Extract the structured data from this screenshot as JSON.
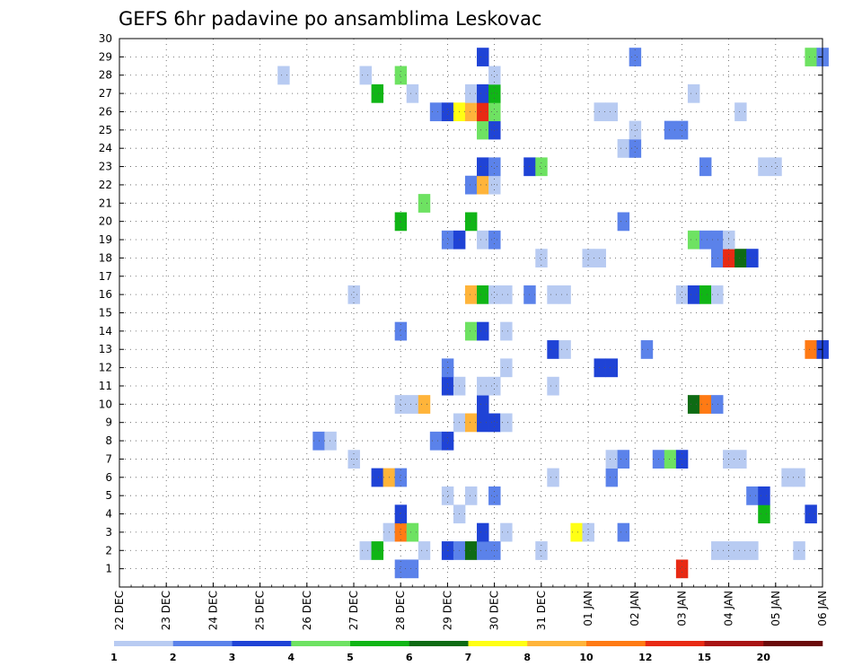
{
  "chart_data": {
    "type": "heatmap",
    "title": "GEFS 6hr padavine po ansamblima Leskovac",
    "xlabel": "",
    "ylabel": "",
    "x_tick_labels": [
      "22 DEC",
      "23 DEC",
      "24 DEC",
      "25 DEC",
      "26 DEC",
      "27 DEC",
      "28 DEC",
      "29 DEC",
      "30 DEC",
      "31 DEC",
      "01 JAN",
      "02 JAN",
      "03 JAN",
      "04 JAN",
      "05 JAN",
      "06 JAN"
    ],
    "y_tick_labels": [
      "1",
      "2",
      "3",
      "4",
      "5",
      "6",
      "7",
      "8",
      "9",
      "10",
      "11",
      "12",
      "13",
      "14",
      "15",
      "16",
      "17",
      "18",
      "19",
      "20",
      "21",
      "22",
      "23",
      "24",
      "25",
      "26",
      "27",
      "28",
      "29",
      "30"
    ],
    "x_range_days": [
      0,
      15
    ],
    "y_range_members": [
      0,
      30
    ],
    "time_step_days": 0.25,
    "grid": true,
    "legend_placement": "bottom",
    "legend_thresholds": [
      "1",
      "2",
      "3",
      "4",
      "5",
      "6",
      "7",
      "8",
      "10",
      "12",
      "15",
      "20"
    ],
    "legend_colors": [
      "#b8cbf2",
      "#5b82ea",
      "#1f43d6",
      "#6ee262",
      "#10b516",
      "#0e6b14",
      "#ffff14",
      "#ffb43a",
      "#ff7a14",
      "#e82a14",
      "#a81414",
      "#6a0a0a"
    ],
    "cells": [
      {
        "member": 1,
        "t": 6.0,
        "cls": 2
      },
      {
        "member": 1,
        "t": 6.25,
        "cls": 2
      },
      {
        "member": 1,
        "t": 12.0,
        "cls": 10
      },
      {
        "member": 2,
        "t": 5.25,
        "cls": 1
      },
      {
        "member": 2,
        "t": 5.5,
        "cls": 5
      },
      {
        "member": 2,
        "t": 6.5,
        "cls": 1
      },
      {
        "member": 2,
        "t": 7.0,
        "cls": 3
      },
      {
        "member": 2,
        "t": 7.25,
        "cls": 2
      },
      {
        "member": 2,
        "t": 7.5,
        "cls": 6
      },
      {
        "member": 2,
        "t": 7.75,
        "cls": 2
      },
      {
        "member": 2,
        "t": 8.0,
        "cls": 2
      },
      {
        "member": 2,
        "t": 9.0,
        "cls": 1
      },
      {
        "member": 2,
        "t": 12.75,
        "cls": 1
      },
      {
        "member": 2,
        "t": 13.0,
        "cls": 1
      },
      {
        "member": 2,
        "t": 13.25,
        "cls": 1
      },
      {
        "member": 2,
        "t": 13.5,
        "cls": 1
      },
      {
        "member": 2,
        "t": 14.5,
        "cls": 1
      },
      {
        "member": 3,
        "t": 5.75,
        "cls": 1
      },
      {
        "member": 3,
        "t": 6.0,
        "cls": 9
      },
      {
        "member": 3,
        "t": 6.25,
        "cls": 4
      },
      {
        "member": 3,
        "t": 7.75,
        "cls": 3
      },
      {
        "member": 3,
        "t": 8.25,
        "cls": 1
      },
      {
        "member": 3,
        "t": 9.75,
        "cls": 7
      },
      {
        "member": 3,
        "t": 10.0,
        "cls": 1
      },
      {
        "member": 3,
        "t": 10.75,
        "cls": 2
      },
      {
        "member": 4,
        "t": 6.0,
        "cls": 3
      },
      {
        "member": 4,
        "t": 7.25,
        "cls": 1
      },
      {
        "member": 4,
        "t": 13.75,
        "cls": 5
      },
      {
        "member": 4,
        "t": 14.75,
        "cls": 3
      },
      {
        "member": 5,
        "t": 7.0,
        "cls": 1
      },
      {
        "member": 5,
        "t": 7.5,
        "cls": 1
      },
      {
        "member": 5,
        "t": 8.0,
        "cls": 2
      },
      {
        "member": 5,
        "t": 13.5,
        "cls": 2
      },
      {
        "member": 5,
        "t": 13.75,
        "cls": 3
      },
      {
        "member": 6,
        "t": 5.5,
        "cls": 3
      },
      {
        "member": 6,
        "t": 5.75,
        "cls": 8
      },
      {
        "member": 6,
        "t": 6.0,
        "cls": 2
      },
      {
        "member": 6,
        "t": 9.25,
        "cls": 1
      },
      {
        "member": 6,
        "t": 10.5,
        "cls": 2
      },
      {
        "member": 6,
        "t": 14.25,
        "cls": 1
      },
      {
        "member": 6,
        "t": 14.5,
        "cls": 1
      },
      {
        "member": 7,
        "t": 5.0,
        "cls": 1
      },
      {
        "member": 7,
        "t": 10.5,
        "cls": 1
      },
      {
        "member": 7,
        "t": 10.75,
        "cls": 2
      },
      {
        "member": 7,
        "t": 11.5,
        "cls": 2
      },
      {
        "member": 7,
        "t": 11.75,
        "cls": 4
      },
      {
        "member": 7,
        "t": 12.0,
        "cls": 3
      },
      {
        "member": 7,
        "t": 13.0,
        "cls": 1
      },
      {
        "member": 7,
        "t": 13.25,
        "cls": 1
      },
      {
        "member": 8,
        "t": 4.25,
        "cls": 2
      },
      {
        "member": 8,
        "t": 4.5,
        "cls": 1
      },
      {
        "member": 8,
        "t": 6.75,
        "cls": 2
      },
      {
        "member": 8,
        "t": 7.0,
        "cls": 3
      },
      {
        "member": 9,
        "t": 7.25,
        "cls": 1
      },
      {
        "member": 9,
        "t": 7.5,
        "cls": 8
      },
      {
        "member": 9,
        "t": 7.75,
        "cls": 3
      },
      {
        "member": 9,
        "t": 8.0,
        "cls": 3
      },
      {
        "member": 9,
        "t": 8.25,
        "cls": 1
      },
      {
        "member": 10,
        "t": 6.0,
        "cls": 1
      },
      {
        "member": 10,
        "t": 6.25,
        "cls": 1
      },
      {
        "member": 10,
        "t": 6.5,
        "cls": 8
      },
      {
        "member": 10,
        "t": 7.75,
        "cls": 3
      },
      {
        "member": 10,
        "t": 12.25,
        "cls": 6
      },
      {
        "member": 10,
        "t": 12.5,
        "cls": 9
      },
      {
        "member": 10,
        "t": 12.75,
        "cls": 2
      },
      {
        "member": 11,
        "t": 7.0,
        "cls": 3
      },
      {
        "member": 11,
        "t": 7.25,
        "cls": 1
      },
      {
        "member": 11,
        "t": 7.75,
        "cls": 1
      },
      {
        "member": 11,
        "t": 8.0,
        "cls": 1
      },
      {
        "member": 11,
        "t": 9.25,
        "cls": 1
      },
      {
        "member": 12,
        "t": 7.0,
        "cls": 2
      },
      {
        "member": 12,
        "t": 8.25,
        "cls": 1
      },
      {
        "member": 12,
        "t": 10.25,
        "cls": 3
      },
      {
        "member": 12,
        "t": 10.5,
        "cls": 3
      },
      {
        "member": 13,
        "t": 9.25,
        "cls": 3
      },
      {
        "member": 13,
        "t": 9.5,
        "cls": 1
      },
      {
        "member": 13,
        "t": 11.25,
        "cls": 2
      },
      {
        "member": 13,
        "t": 14.75,
        "cls": 9
      },
      {
        "member": 13,
        "t": 15.0,
        "cls": 3
      },
      {
        "member": 14,
        "t": 6.0,
        "cls": 2
      },
      {
        "member": 14,
        "t": 7.5,
        "cls": 4
      },
      {
        "member": 14,
        "t": 7.75,
        "cls": 3
      },
      {
        "member": 14,
        "t": 8.25,
        "cls": 1
      },
      {
        "member": 16,
        "t": 5.0,
        "cls": 1
      },
      {
        "member": 16,
        "t": 7.5,
        "cls": 8
      },
      {
        "member": 16,
        "t": 7.75,
        "cls": 5
      },
      {
        "member": 16,
        "t": 8.0,
        "cls": 1
      },
      {
        "member": 16,
        "t": 8.25,
        "cls": 1
      },
      {
        "member": 16,
        "t": 8.75,
        "cls": 2
      },
      {
        "member": 16,
        "t": 9.25,
        "cls": 1
      },
      {
        "member": 16,
        "t": 9.5,
        "cls": 1
      },
      {
        "member": 16,
        "t": 12.0,
        "cls": 1
      },
      {
        "member": 16,
        "t": 12.25,
        "cls": 3
      },
      {
        "member": 16,
        "t": 12.5,
        "cls": 5
      },
      {
        "member": 16,
        "t": 12.75,
        "cls": 1
      },
      {
        "member": 18,
        "t": 9.0,
        "cls": 1
      },
      {
        "member": 18,
        "t": 10.0,
        "cls": 1
      },
      {
        "member": 18,
        "t": 10.25,
        "cls": 1
      },
      {
        "member": 18,
        "t": 12.75,
        "cls": 2
      },
      {
        "member": 18,
        "t": 13.0,
        "cls": 10
      },
      {
        "member": 18,
        "t": 13.25,
        "cls": 6
      },
      {
        "member": 18,
        "t": 13.5,
        "cls": 3
      },
      {
        "member": 19,
        "t": 7.0,
        "cls": 2
      },
      {
        "member": 19,
        "t": 7.25,
        "cls": 3
      },
      {
        "member": 19,
        "t": 7.75,
        "cls": 1
      },
      {
        "member": 19,
        "t": 8.0,
        "cls": 2
      },
      {
        "member": 19,
        "t": 12.25,
        "cls": 4
      },
      {
        "member": 19,
        "t": 12.5,
        "cls": 2
      },
      {
        "member": 19,
        "t": 12.75,
        "cls": 2
      },
      {
        "member": 19,
        "t": 13.0,
        "cls": 1
      },
      {
        "member": 20,
        "t": 6.0,
        "cls": 5
      },
      {
        "member": 20,
        "t": 7.5,
        "cls": 5
      },
      {
        "member": 20,
        "t": 10.75,
        "cls": 2
      },
      {
        "member": 21,
        "t": 6.5,
        "cls": 4
      },
      {
        "member": 22,
        "t": 7.5,
        "cls": 2
      },
      {
        "member": 22,
        "t": 7.75,
        "cls": 8
      },
      {
        "member": 22,
        "t": 8.0,
        "cls": 1
      },
      {
        "member": 23,
        "t": 7.75,
        "cls": 3
      },
      {
        "member": 23,
        "t": 8.0,
        "cls": 2
      },
      {
        "member": 23,
        "t": 8.75,
        "cls": 3
      },
      {
        "member": 23,
        "t": 9.0,
        "cls": 4
      },
      {
        "member": 23,
        "t": 12.5,
        "cls": 2
      },
      {
        "member": 23,
        "t": 13.75,
        "cls": 1
      },
      {
        "member": 23,
        "t": 14.0,
        "cls": 1
      },
      {
        "member": 24,
        "t": 10.75,
        "cls": 1
      },
      {
        "member": 24,
        "t": 11.0,
        "cls": 2
      },
      {
        "member": 25,
        "t": 7.75,
        "cls": 4
      },
      {
        "member": 25,
        "t": 8.0,
        "cls": 3
      },
      {
        "member": 25,
        "t": 11.0,
        "cls": 1
      },
      {
        "member": 25,
        "t": 11.75,
        "cls": 2
      },
      {
        "member": 25,
        "t": 12.0,
        "cls": 2
      },
      {
        "member": 26,
        "t": 6.75,
        "cls": 2
      },
      {
        "member": 26,
        "t": 7.0,
        "cls": 3
      },
      {
        "member": 26,
        "t": 7.25,
        "cls": 7
      },
      {
        "member": 26,
        "t": 7.5,
        "cls": 8
      },
      {
        "member": 26,
        "t": 7.75,
        "cls": 10
      },
      {
        "member": 26,
        "t": 8.0,
        "cls": 4
      },
      {
        "member": 26,
        "t": 10.25,
        "cls": 1
      },
      {
        "member": 26,
        "t": 10.5,
        "cls": 1
      },
      {
        "member": 26,
        "t": 13.25,
        "cls": 1
      },
      {
        "member": 27,
        "t": 5.5,
        "cls": 5
      },
      {
        "member": 27,
        "t": 6.25,
        "cls": 1
      },
      {
        "member": 27,
        "t": 7.5,
        "cls": 1
      },
      {
        "member": 27,
        "t": 7.75,
        "cls": 3
      },
      {
        "member": 27,
        "t": 8.0,
        "cls": 5
      },
      {
        "member": 27,
        "t": 12.25,
        "cls": 1
      },
      {
        "member": 28,
        "t": 3.5,
        "cls": 1
      },
      {
        "member": 28,
        "t": 5.25,
        "cls": 1
      },
      {
        "member": 28,
        "t": 6.0,
        "cls": 4
      },
      {
        "member": 28,
        "t": 8.0,
        "cls": 1
      },
      {
        "member": 29,
        "t": 7.75,
        "cls": 3
      },
      {
        "member": 29,
        "t": 11.0,
        "cls": 2
      },
      {
        "member": 29,
        "t": 14.75,
        "cls": 4
      },
      {
        "member": 29,
        "t": 15.0,
        "cls": 2
      }
    ]
  }
}
